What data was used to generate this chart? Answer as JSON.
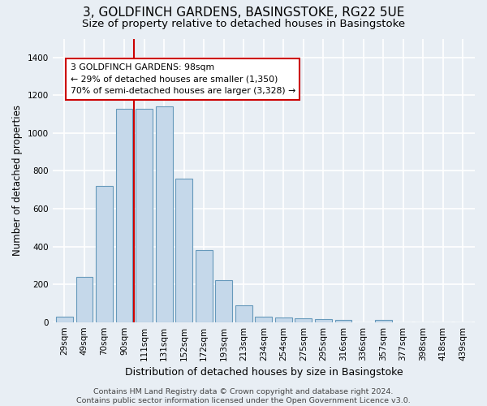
{
  "title": "3, GOLDFINCH GARDENS, BASINGSTOKE, RG22 5UE",
  "subtitle": "Size of property relative to detached houses in Basingstoke",
  "xlabel": "Distribution of detached houses by size in Basingstoke",
  "ylabel": "Number of detached properties",
  "bar_labels": [
    "29sqm",
    "49sqm",
    "70sqm",
    "90sqm",
    "111sqm",
    "131sqm",
    "152sqm",
    "172sqm",
    "193sqm",
    "213sqm",
    "234sqm",
    "254sqm",
    "275sqm",
    "295sqm",
    "316sqm",
    "336sqm",
    "357sqm",
    "377sqm",
    "398sqm",
    "418sqm",
    "439sqm"
  ],
  "bar_values": [
    30,
    240,
    720,
    1130,
    1130,
    1140,
    760,
    380,
    220,
    90,
    30,
    25,
    20,
    15,
    10,
    0,
    10,
    0,
    0,
    0,
    0
  ],
  "bar_color": "#c5d8ea",
  "bar_edge_color": "#6699bb",
  "vline_color": "#cc0000",
  "annotation_text": "3 GOLDFINCH GARDENS: 98sqm\n← 29% of detached houses are smaller (1,350)\n70% of semi-detached houses are larger (3,328) →",
  "annotation_box_color": "white",
  "annotation_box_edge_color": "#cc0000",
  "ylim": [
    0,
    1500
  ],
  "yticks": [
    0,
    200,
    400,
    600,
    800,
    1000,
    1200,
    1400
  ],
  "background_color": "#e8eef4",
  "grid_color": "white",
  "title_fontsize": 11,
  "subtitle_fontsize": 9.5,
  "ylabel_fontsize": 8.5,
  "xlabel_fontsize": 9,
  "tick_fontsize": 7.5,
  "annotation_fontsize": 7.8,
  "footer_fontsize": 6.8,
  "footer_line1": "Contains HM Land Registry data © Crown copyright and database right 2024.",
  "footer_line2": "Contains public sector information licensed under the Open Government Licence v3.0."
}
